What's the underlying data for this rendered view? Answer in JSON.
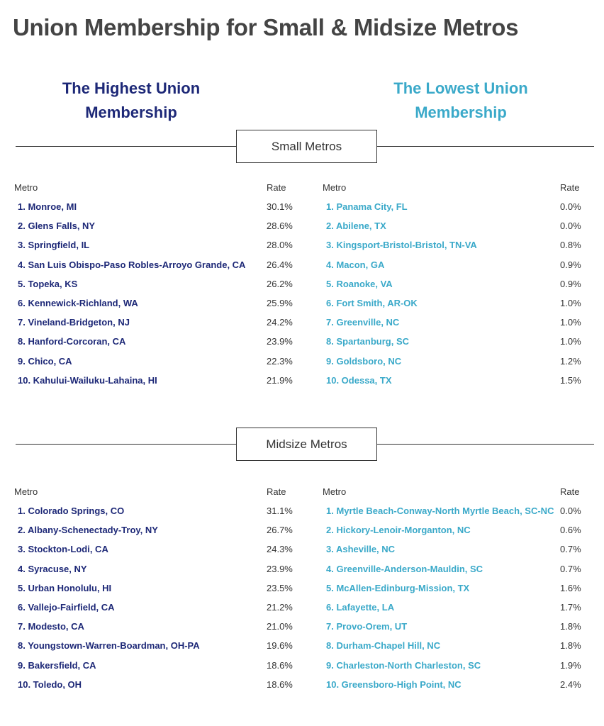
{
  "title": "Union Membership for Small & Midsize Metros",
  "headings": {
    "highest": "The Highest Union Membership",
    "lowest": "The Lowest Union Membership"
  },
  "sections": [
    {
      "title": "Small Metros",
      "highest": {
        "header": [
          "Metro",
          "Rate"
        ],
        "rows": [
          [
            "1. Monroe, MI",
            "30.1%"
          ],
          [
            "2. Glens Falls, NY",
            "28.6%"
          ],
          [
            "3. Springfield, IL",
            "28.0%"
          ],
          [
            "4. San Luis Obispo-Paso Robles-Arroyo Grande, CA",
            "26.4%"
          ],
          [
            "5. Topeka, KS",
            "26.2%"
          ],
          [
            "6. Kennewick-Richland, WA",
            "25.9%"
          ],
          [
            "7. Vineland-Bridgeton, NJ",
            "24.2%"
          ],
          [
            "8. Hanford-Corcoran, CA",
            "23.9%"
          ],
          [
            "9. Chico, CA",
            "22.3%"
          ],
          [
            "10. Kahului-Wailuku-Lahaina, HI",
            "21.9%"
          ]
        ]
      },
      "lowest": {
        "header": [
          "Metro",
          "Rate"
        ],
        "rows": [
          [
            "1. Panama City, FL",
            "0.0%"
          ],
          [
            "2. Abilene, TX",
            "0.0%"
          ],
          [
            "3. Kingsport-Bristol-Bristol, TN-VA",
            "0.8%"
          ],
          [
            "4. Macon, GA",
            "0.9%"
          ],
          [
            "5. Roanoke, VA",
            "0.9%"
          ],
          [
            "6. Fort Smith, AR-OK",
            "1.0%"
          ],
          [
            "7. Greenville, NC",
            "1.0%"
          ],
          [
            "8. Spartanburg, SC",
            "1.0%"
          ],
          [
            "9. Goldsboro, NC",
            "1.2%"
          ],
          [
            "10. Odessa, TX",
            "1.5%"
          ]
        ]
      }
    },
    {
      "title": "Midsize Metros",
      "highest": {
        "header": [
          "Metro",
          "Rate"
        ],
        "rows": [
          [
            "1. Colorado Springs, CO",
            "31.1%"
          ],
          [
            "2. Albany-Schenectady-Troy, NY",
            "26.7%"
          ],
          [
            "3. Stockton-Lodi, CA",
            "24.3%"
          ],
          [
            "4. Syracuse, NY",
            "23.9%"
          ],
          [
            "5. Urban Honolulu, HI",
            "23.5%"
          ],
          [
            "6. Vallejo-Fairfield, CA",
            "21.2%"
          ],
          [
            "7. Modesto, CA",
            "21.0%"
          ],
          [
            "8. Youngstown-Warren-Boardman, OH-PA",
            "19.6%"
          ],
          [
            "9. Bakersfield, CA",
            "18.6%"
          ],
          [
            "10. Toledo, OH",
            "18.6%"
          ]
        ]
      },
      "lowest": {
        "header": [
          "Metro",
          "Rate"
        ],
        "rows": [
          [
            "1. Myrtle Beach-Conway-North Myrtle Beach, SC-NC",
            "0.0%"
          ],
          [
            "2. Hickory-Lenoir-Morganton, NC",
            "0.6%"
          ],
          [
            "3. Asheville, NC",
            "0.7%"
          ],
          [
            "4. Greenville-Anderson-Mauldin, SC",
            "0.7%"
          ],
          [
            "5. McAllen-Edinburg-Mission, TX",
            "1.6%"
          ],
          [
            "6. Lafayette, LA",
            "1.7%"
          ],
          [
            "7. Provo-Orem, UT",
            "1.8%"
          ],
          [
            "8. Durham-Chapel Hill, NC",
            "1.8%"
          ],
          [
            "9. Charleston-North Charleston, SC",
            "1.9%"
          ],
          [
            "10. Greensboro-High Point, NC",
            "2.4%"
          ]
        ]
      }
    }
  ]
}
